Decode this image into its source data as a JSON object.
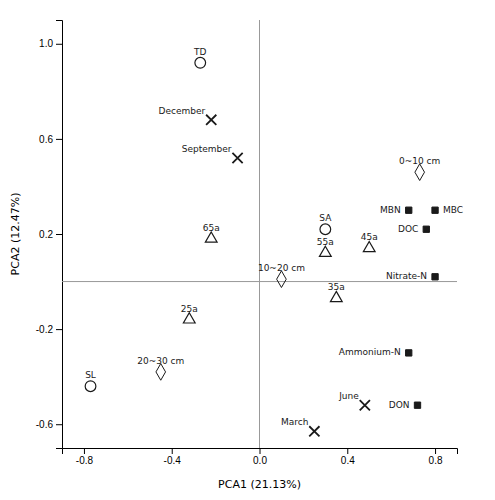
{
  "chart_data": {
    "type": "scatter",
    "xlabel": "PCA1 (21.13%)",
    "ylabel": "PCA2 (12.47%)",
    "xlim": [
      -0.9,
      0.9
    ],
    "ylim": [
      -0.7,
      1.1
    ],
    "xticks": [
      -0.8,
      -0.4,
      {
        "value": 0,
        "label": "0.0"
      },
      0.4,
      0.8
    ],
    "yticks": [
      -0.6,
      -0.2,
      0.2,
      0.6,
      {
        "value": 1,
        "label": "1.0"
      }
    ],
    "grid": false,
    "color": "#1a1a1a",
    "hlines": [
      0
    ],
    "vlines": [
      0
    ],
    "series": [
      {
        "marker": "circle_open",
        "x": [
          -0.27,
          0.3,
          -0.77
        ],
        "values": [
          0.92,
          0.22,
          -0.44
        ],
        "labels": [
          "TD",
          "SA",
          "SL"
        ]
      },
      {
        "marker": "x",
        "x": [
          -0.22,
          -0.1,
          0.48,
          0.25
        ],
        "values": [
          0.68,
          0.52,
          -0.52,
          -0.63
        ],
        "labels": [
          "December",
          "September",
          "June",
          "March"
        ]
      },
      {
        "marker": "triangle_open",
        "x": [
          -0.22,
          0.3,
          0.5,
          0.35,
          -0.32
        ],
        "values": [
          0.18,
          0.12,
          0.14,
          -0.07,
          -0.16
        ],
        "labels": [
          "65a",
          "55a",
          "45a",
          "35a",
          "25a"
        ]
      },
      {
        "marker": "diamond_open",
        "x": [
          0.73,
          0.1,
          -0.45
        ],
        "values": [
          0.46,
          0.01,
          -0.38
        ],
        "labels": [
          "0~10 cm",
          "10~20 cm",
          "20~30 cm"
        ]
      },
      {
        "marker": "square_filled",
        "x": [
          0.8,
          0.68,
          0.76,
          0.72,
          0.8,
          0.68
        ],
        "values": [
          0.3,
          0.3,
          0.22,
          -0.52,
          0.02,
          -0.3
        ],
        "labels": [
          "MBC",
          "MBN",
          "DOC",
          "DON",
          "Nitrate-N",
          "Ammonium-N"
        ]
      }
    ]
  }
}
